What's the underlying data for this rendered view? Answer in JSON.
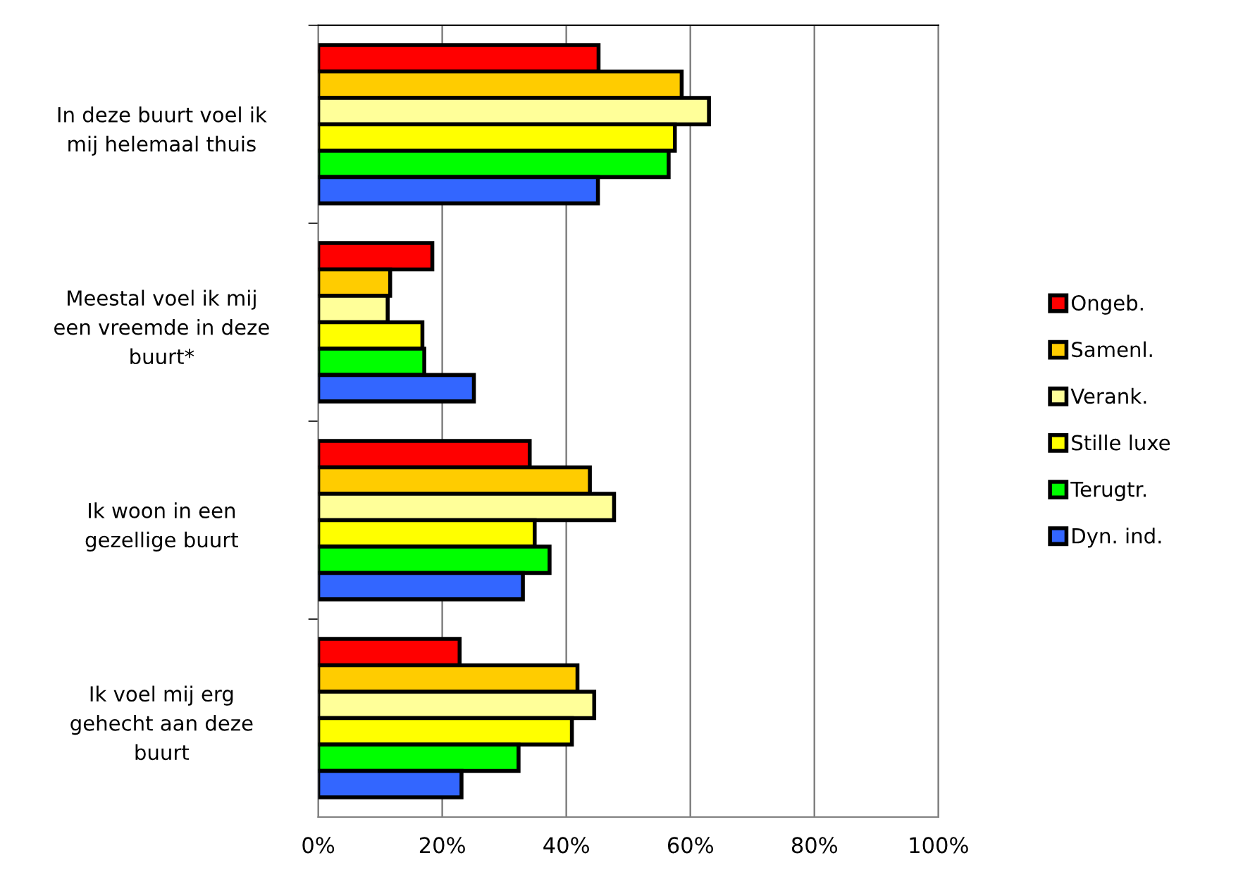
{
  "chart_data": {
    "type": "bar",
    "orientation": "horizontal",
    "categories": [
      "In deze buurt voel ik\nmij helemaal thuis",
      "Meestal voel ik mij\neen vreemde in deze\nbuurt*",
      "Ik woon in een\ngezellige buurt",
      "Ik voel mij erg\ngehecht aan deze\nbuurt"
    ],
    "series": [
      {
        "name": "Ongeb.",
        "color": "#ff0000",
        "values": [
          45.2,
          18.4,
          34.1,
          22.8
        ]
      },
      {
        "name": "Samenl.",
        "color": "#ffcc00",
        "values": [
          58.6,
          11.6,
          43.8,
          41.8
        ]
      },
      {
        "name": "Verank.",
        "color": "#ffff99",
        "values": [
          63.0,
          11.2,
          47.7,
          44.5
        ]
      },
      {
        "name": "Stille luxe",
        "color": "#ffff00",
        "values": [
          57.5,
          16.8,
          34.9,
          40.9
        ]
      },
      {
        "name": "Terugtr.",
        "color": "#00ff00",
        "values": [
          56.5,
          17.1,
          37.3,
          32.3
        ]
      },
      {
        "name": "Dyn. ind.",
        "color": "#3366ff",
        "values": [
          45.1,
          25.1,
          33.0,
          23.1
        ]
      }
    ],
    "xlim": [
      0,
      100
    ],
    "xticks": [
      {
        "value": 0,
        "label": "0%"
      },
      {
        "value": 20,
        "label": "20%"
      },
      {
        "value": 40,
        "label": "40%"
      },
      {
        "value": 60,
        "label": "60%"
      },
      {
        "value": 80,
        "label": "80%"
      },
      {
        "value": 100,
        "label": "100%"
      }
    ],
    "grid": "x",
    "legend": "right"
  }
}
